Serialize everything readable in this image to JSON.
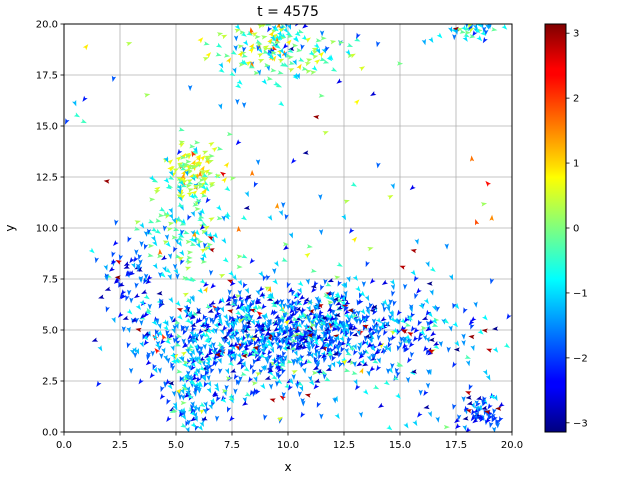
{
  "chart_data": {
    "type": "quiver",
    "title": "t = 4575",
    "xlabel": "x",
    "ylabel": "y",
    "xlim": [
      0,
      20
    ],
    "ylim": [
      0,
      20
    ],
    "grid": true,
    "xticks": [
      "0.0",
      "2.5",
      "5.0",
      "7.5",
      "10.0",
      "12.5",
      "15.0",
      "17.5",
      "20.0"
    ],
    "yticks": [
      "0.0",
      "2.5",
      "5.0",
      "7.5",
      "10.0",
      "12.5",
      "15.0",
      "17.5",
      "20.0"
    ],
    "colorbar": {
      "colormap": "jet",
      "range": [
        -3.14159,
        3.14159
      ],
      "ticks": [
        "3",
        "2",
        "1",
        "0",
        "−1",
        "−2",
        "−3"
      ]
    },
    "clusters": [
      {
        "cx": 10.5,
        "cy": 5.0,
        "sx": 3.2,
        "sy": 1.1,
        "n": 900,
        "angle_mean": -1.7,
        "angle_sd": 0.8
      },
      {
        "cx": 8.0,
        "cy": 3.8,
        "sx": 2.3,
        "sy": 1.5,
        "n": 300,
        "angle_mean": -1.5,
        "angle_sd": 0.8
      },
      {
        "cx": 5.7,
        "cy": 12.7,
        "sx": 0.6,
        "sy": 0.7,
        "n": 110,
        "angle_mean": 0.4,
        "angle_sd": 0.6
      },
      {
        "cx": 5.5,
        "cy": 10.0,
        "sx": 1.0,
        "sy": 1.6,
        "n": 140,
        "angle_mean": -0.6,
        "angle_sd": 0.8
      },
      {
        "cx": 9.5,
        "cy": 18.8,
        "sx": 1.6,
        "sy": 0.8,
        "n": 180,
        "angle_mean": -0.2,
        "angle_sd": 0.9
      },
      {
        "cx": 5.6,
        "cy": 2.0,
        "sx": 0.5,
        "sy": 1.3,
        "n": 120,
        "angle_mean": -1.2,
        "angle_sd": 0.7
      },
      {
        "cx": 18.6,
        "cy": 0.8,
        "sx": 0.5,
        "sy": 0.5,
        "n": 70,
        "angle_mean": -2.2,
        "angle_sd": 0.6
      },
      {
        "cx": 18.3,
        "cy": 19.7,
        "sx": 0.6,
        "sy": 0.3,
        "n": 45,
        "angle_mean": -0.8,
        "angle_sd": 0.7
      },
      {
        "cx": 3.2,
        "cy": 7.5,
        "sx": 0.8,
        "sy": 1.2,
        "n": 70,
        "angle_mean": -1.9,
        "angle_sd": 0.6
      },
      {
        "cx": 15.0,
        "cy": 3.5,
        "sx": 1.8,
        "sy": 2.2,
        "n": 70,
        "angle_mean": -1.4,
        "angle_sd": 0.9
      },
      {
        "cx": 10.0,
        "cy": 9.5,
        "sx": 4.0,
        "sy": 5.0,
        "n": 100,
        "angle_mean": -1.0,
        "angle_sd": 1.2
      }
    ],
    "isolated_arrows": [
      {
        "x": 1.9,
        "y": 12.3,
        "angle": 3.0
      },
      {
        "x": 15.6,
        "y": 8.9,
        "angle": 2.9
      },
      {
        "x": 15.1,
        "y": 8.1,
        "angle": 2.8
      },
      {
        "x": 18.9,
        "y": 12.2,
        "angle": 2.3
      },
      {
        "x": 18.4,
        "y": 10.3,
        "angle": 1.9
      },
      {
        "x": 19.1,
        "y": 10.5,
        "angle": 1.5
      },
      {
        "x": 8.4,
        "y": 12.7,
        "angle": 1.6
      },
      {
        "x": 1.0,
        "y": 18.9,
        "angle": 0.9
      },
      {
        "x": 13.1,
        "y": 16.2,
        "angle": 0.8
      },
      {
        "x": 2.2,
        "y": 17.3,
        "angle": -1.8
      },
      {
        "x": 0.1,
        "y": 15.2,
        "angle": -2.0
      },
      {
        "x": 0.5,
        "y": 16.1,
        "angle": -1.2
      },
      {
        "x": 0.9,
        "y": 16.3,
        "angle": -2.2
      },
      {
        "x": 0.6,
        "y": 15.5,
        "angle": -0.5
      },
      {
        "x": 0.9,
        "y": 15.2,
        "angle": -0.4
      },
      {
        "x": 13.1,
        "y": 19.4,
        "angle": -2.0
      },
      {
        "x": 14.0,
        "y": 19.0,
        "angle": -1.8
      },
      {
        "x": 16.1,
        "y": 19.1,
        "angle": -1.3
      },
      {
        "x": 16.8,
        "y": 19.4,
        "angle": -0.8
      },
      {
        "x": 19.3,
        "y": 4.0,
        "angle": -0.9
      },
      {
        "x": 19.8,
        "y": 4.2,
        "angle": -0.6
      },
      {
        "x": 16.7,
        "y": 0.6,
        "angle": -1.4
      }
    ]
  }
}
